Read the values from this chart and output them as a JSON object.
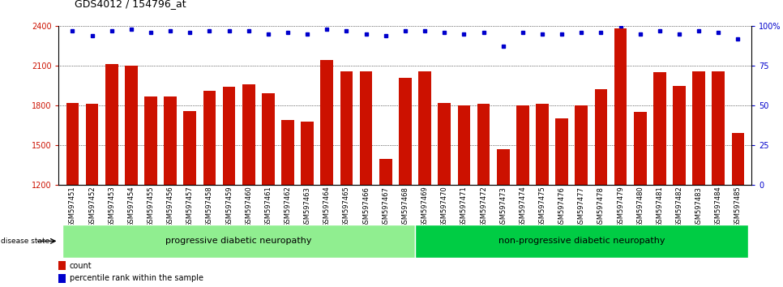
{
  "title": "GDS4012 / 154796_at",
  "samples": [
    "GSM597451",
    "GSM597452",
    "GSM597453",
    "GSM597454",
    "GSM597455",
    "GSM597456",
    "GSM597457",
    "GSM597458",
    "GSM597459",
    "GSM597460",
    "GSM597461",
    "GSM597462",
    "GSM597463",
    "GSM597464",
    "GSM597465",
    "GSM597466",
    "GSM597467",
    "GSM597468",
    "GSM597469",
    "GSM597470",
    "GSM597471",
    "GSM597472",
    "GSM597473",
    "GSM597474",
    "GSM597475",
    "GSM597476",
    "GSM597477",
    "GSM597478",
    "GSM597479",
    "GSM597480",
    "GSM597481",
    "GSM597482",
    "GSM597483",
    "GSM597484",
    "GSM597485"
  ],
  "bar_values": [
    1820,
    1810,
    2110,
    2100,
    1870,
    1870,
    1760,
    1910,
    1940,
    1960,
    1890,
    1690,
    1680,
    2140,
    2060,
    2060,
    1400,
    2010,
    2060,
    1820,
    1800,
    1810,
    1470,
    1800,
    1810,
    1700,
    1800,
    1920,
    2380,
    1750,
    2050,
    1950,
    2060,
    2060,
    1590
  ],
  "percentile_values": [
    97,
    94,
    97,
    98,
    96,
    97,
    96,
    97,
    97,
    97,
    95,
    96,
    95,
    98,
    97,
    95,
    94,
    97,
    97,
    96,
    95,
    96,
    87,
    96,
    95,
    95,
    96,
    96,
    100,
    95,
    97,
    95,
    97,
    96,
    92
  ],
  "group1_label": "progressive diabetic neuropathy",
  "group2_label": "non-progressive diabetic neuropathy",
  "group1_count": 18,
  "group2_count": 17,
  "ylim_left": [
    1200,
    2400
  ],
  "ylim_right": [
    0,
    100
  ],
  "yticks_left": [
    1200,
    1500,
    1800,
    2100,
    2400
  ],
  "yticks_right": [
    0,
    25,
    50,
    75,
    100
  ],
  "bar_color": "#cc1100",
  "dot_color": "#0000cc",
  "group1_color": "#90EE90",
  "group2_color": "#00cc44",
  "title_fontsize": 9,
  "tick_fontsize": 7,
  "label_fontsize": 6,
  "legend_fontsize": 7,
  "group_label_fontsize": 8
}
